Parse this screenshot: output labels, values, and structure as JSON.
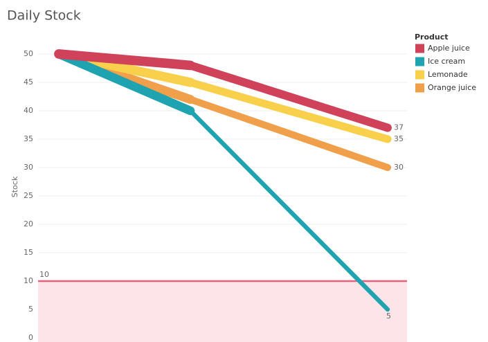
{
  "chart_data": {
    "type": "line",
    "title": "Daily Stock",
    "y_label": "Stock",
    "categories": [
      null,
      null,
      null
    ],
    "series": [
      {
        "name": "Apple juice",
        "color": "#d0415a",
        "values": [
          50,
          48,
          37
        ]
      },
      {
        "name": "Ice cream",
        "color": "#1fa3b0",
        "values": [
          50,
          40,
          5
        ]
      },
      {
        "name": "Lemonade",
        "color": "#f8d04c",
        "values": [
          50,
          45,
          35
        ]
      },
      {
        "name": "Orange juice",
        "color": "#f0a04b",
        "values": [
          50,
          42,
          30
        ]
      }
    ],
    "legend_title": "Product",
    "legend": "right",
    "reference_line": {
      "value": 10,
      "color": "#e8607a",
      "band_color": "#fce4e8"
    },
    "ylim": [
      0,
      52
    ],
    "yticks": [
      0,
      5,
      10,
      15,
      20,
      25,
      30,
      35,
      40,
      45,
      50
    ],
    "grid": true
  }
}
